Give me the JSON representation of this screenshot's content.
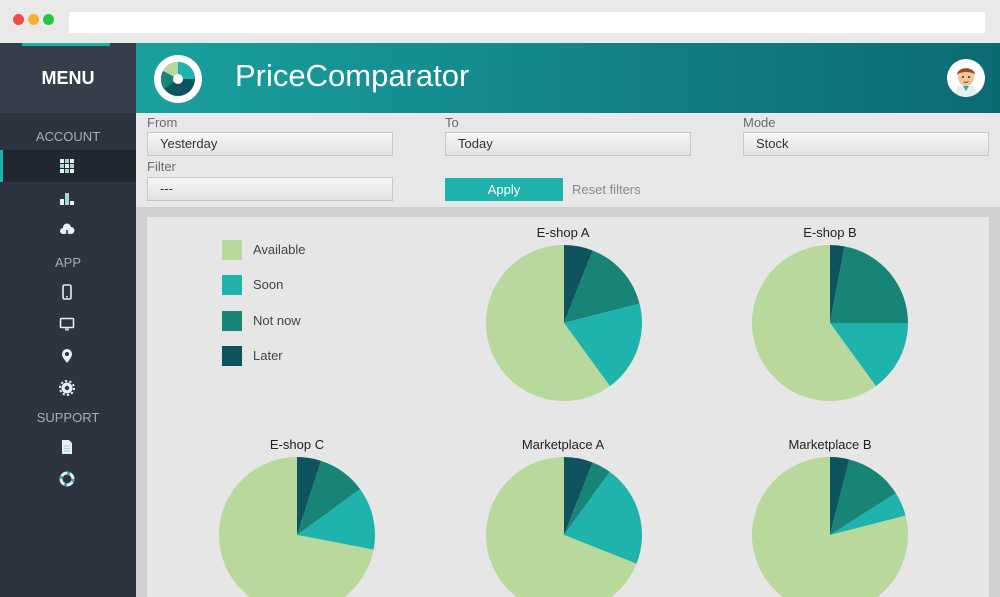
{
  "sidebar": {
    "menu_title": "MENU",
    "sections": {
      "account": "ACCOUNT",
      "app": "APP",
      "support": "SUPPORT"
    },
    "icons": [
      "grid-icon",
      "bar-chart-icon",
      "cloud-icon",
      "mobile-icon",
      "monitor-icon",
      "location-icon",
      "gear-icon",
      "document-icon",
      "lifebuoy-icon"
    ]
  },
  "header": {
    "title": "PriceComparator"
  },
  "filters": {
    "from_label": "From",
    "from_value": "Yesterday",
    "to_label": "To",
    "to_value": "Today",
    "mode_label": "Mode",
    "mode_value": "Stock",
    "filter_label": "Filter",
    "filter_value": "---",
    "apply_label": "Apply",
    "reset_label": "Reset filters"
  },
  "legend": [
    {
      "label": "Available",
      "color": "#b8d89c"
    },
    {
      "label": "Soon",
      "color": "#1fb3ad"
    },
    {
      "label": "Not now",
      "color": "#178476"
    },
    {
      "label": "Later",
      "color": "#0e5460"
    }
  ],
  "chart_data": [
    {
      "type": "pie",
      "title": "E-shop A",
      "labels": [
        "Available",
        "Soon",
        "Not now",
        "Later"
      ],
      "values": [
        60,
        19,
        15,
        6
      ]
    },
    {
      "type": "pie",
      "title": "E-shop B",
      "labels": [
        "Available",
        "Soon",
        "Not now",
        "Later"
      ],
      "values": [
        60,
        15,
        22,
        3
      ]
    },
    {
      "type": "pie",
      "title": "E-shop C",
      "labels": [
        "Available",
        "Soon",
        "Not now",
        "Later"
      ],
      "values": [
        72,
        13,
        10,
        5
      ]
    },
    {
      "type": "pie",
      "title": "Marketplace A",
      "labels": [
        "Available",
        "Soon",
        "Not now",
        "Later"
      ],
      "values": [
        69,
        21,
        4,
        6
      ]
    },
    {
      "type": "pie",
      "title": "Marketplace B",
      "labels": [
        "Available",
        "Soon",
        "Not now",
        "Later"
      ],
      "values": [
        79,
        5,
        12,
        4
      ]
    }
  ]
}
